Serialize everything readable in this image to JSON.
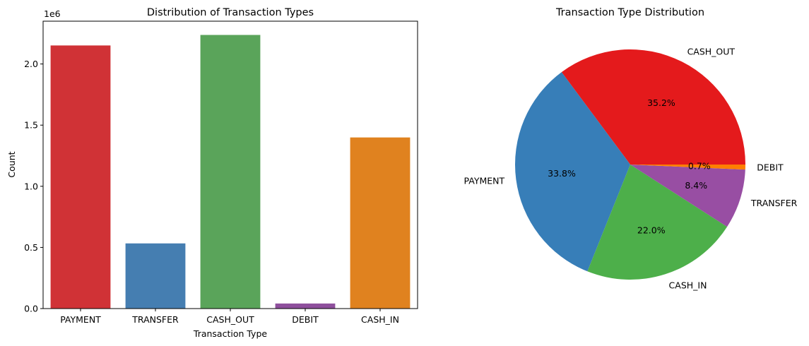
{
  "chart_data": [
    {
      "type": "bar",
      "title": "Distribution of Transaction Types",
      "xlabel": "Transaction Type",
      "ylabel": "Count",
      "offset_text": "1e6",
      "categories": [
        "PAYMENT",
        "TRANSFER",
        "CASH_OUT",
        "DEBIT",
        "CASH_IN"
      ],
      "values": [
        2151495,
        532909,
        2237500,
        41432,
        1399284
      ],
      "colors": [
        "#d03236",
        "#457eb1",
        "#5aa45a",
        "#8e4f9c",
        "#e0821f"
      ],
      "ylim": [
        0,
        2350000
      ],
      "yticks": [
        0,
        500000,
        1000000,
        1500000,
        2000000
      ],
      "ytick_labels": [
        "0.0",
        "0.5",
        "1.0",
        "1.5",
        "2.0"
      ],
      "grid": false
    },
    {
      "type": "pie",
      "title": "Transaction Type Distribution",
      "start_angle_deg": 0,
      "direction": "counterclockwise",
      "slices": [
        {
          "label": "CASH_OUT",
          "pct_label": "35.2%",
          "value": 35.2,
          "color": "#e41a1c"
        },
        {
          "label": "PAYMENT",
          "pct_label": "33.8%",
          "value": 33.8,
          "color": "#377eb8"
        },
        {
          "label": "CASH_IN",
          "pct_label": "22.0%",
          "value": 22.0,
          "color": "#4daf4a"
        },
        {
          "label": "TRANSFER",
          "pct_label": "8.4%",
          "value": 8.4,
          "color": "#984ea3"
        },
        {
          "label": "DEBIT",
          "pct_label": "0.7%",
          "value": 0.7,
          "color": "#ff7f00"
        }
      ]
    }
  ]
}
